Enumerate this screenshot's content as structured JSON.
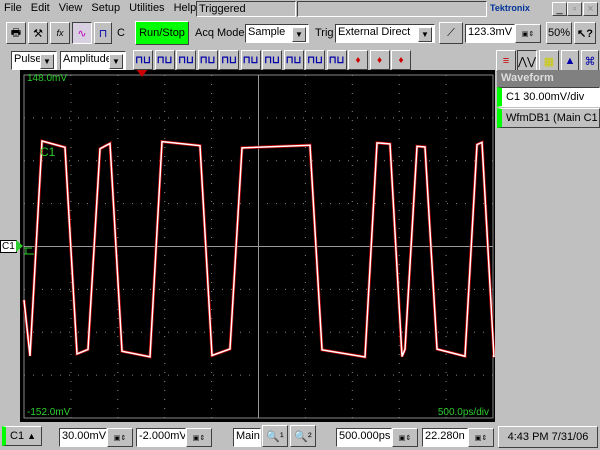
{
  "menu": [
    "File",
    "Edit",
    "View",
    "Setup",
    "Utilities",
    "Help"
  ],
  "status": "Triggered",
  "brand": "Tektronix",
  "toolbar": {
    "run_stop": "Run/Stop",
    "acq_label": "Acq Mode",
    "acq_value": "Sample",
    "trig_label": "Trig",
    "trig_value": "External Direct",
    "trig_level": "123.3mV",
    "zoom_pct": "50%",
    "c_label": "C"
  },
  "measure": {
    "category": "Pulse",
    "type": "Amplitude"
  },
  "panel": {
    "title": "Waveform",
    "items": [
      "C1 30.00mV/div",
      "WfmDB1 (Main C1"
    ]
  },
  "scope": {
    "top_label": "148.0mV",
    "bottom_label": "-152.0mV",
    "timebase_label": "500.0ps/div",
    "trace_label": "C1",
    "channel_marker": "C1"
  },
  "bottom": {
    "channel": "C1",
    "scale": "30.00mV/",
    "offset": "-2.000mV",
    "view": "Main",
    "horiz_scale": "500.000ps",
    "position": "22.280n",
    "datetime": "4:43 PM 7/31/06"
  },
  "colors": {
    "trace": "#ffffff",
    "run_stop": "#00ff00",
    "labels": "#2ecc2e"
  }
}
